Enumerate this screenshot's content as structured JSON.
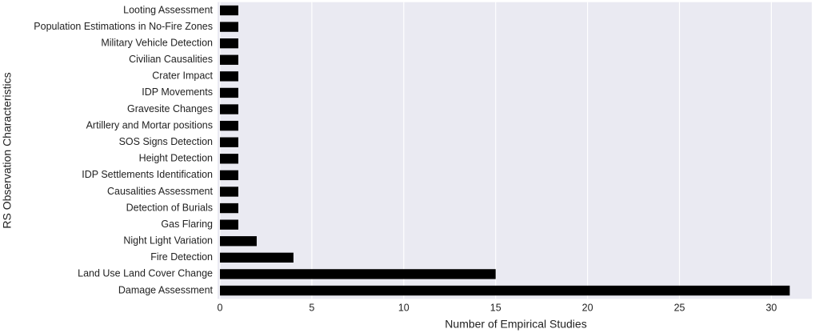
{
  "chart_data": {
    "type": "barh",
    "xlabel": "Number of Empirical Studies",
    "ylabel": "RS Observation Characteristics",
    "categories": [
      "Damage Assessment",
      "Land Use Land Cover Change",
      "Fire Detection",
      "Night Light Variation",
      "Gas Flaring",
      "Detection of Burials",
      "Causalities Assessment",
      "IDP Settlements Identification",
      "Height Detection",
      "SOS Signs Detection",
      "Artillery and Mortar positions",
      "Gravesite Changes",
      "IDP Movements",
      "Crater Impact",
      "Civilian Causalities",
      "Military Vehicle Detection",
      "Population Estimations in No-Fire Zones",
      "Looting Assessment"
    ],
    "values": [
      31,
      15,
      4,
      2,
      1,
      1,
      1,
      1,
      1,
      1,
      1,
      1,
      1,
      1,
      1,
      1,
      1,
      1
    ],
    "color": "#000000",
    "xlim": [
      -0.13,
      32.2
    ],
    "xticks": [
      0,
      5,
      10,
      15,
      20,
      25,
      30
    ],
    "grid": true
  }
}
